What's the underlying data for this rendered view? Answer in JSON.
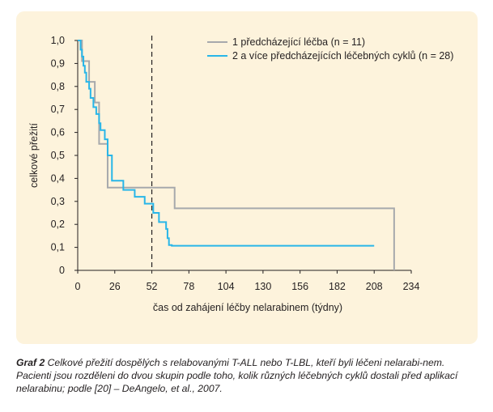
{
  "chart_data": {
    "type": "line",
    "subtype": "kaplan-meier step",
    "xlabel": "čas od zahájení léčby nelarabinem (týdny)",
    "ylabel": "celkové přežití",
    "xlim": [
      0,
      234
    ],
    "ylim": [
      0,
      1.0
    ],
    "x_ticks": [
      "0",
      "26",
      "52",
      "78",
      "104",
      "130",
      "156",
      "182",
      "208",
      "234"
    ],
    "y_ticks": [
      "0",
      "0,1",
      "0,2",
      "0,3",
      "0,4",
      "0,5",
      "0,6",
      "0,7",
      "0,8",
      "0,9",
      "1,0"
    ],
    "reference_line": {
      "x": 52,
      "style": "dashed"
    },
    "legend_position": "top-right",
    "series": [
      {
        "name": "1 předcházející léčba (n = 11)",
        "color": "#a7a9ac",
        "x": [
          0,
          3,
          8,
          12,
          15,
          21,
          68,
          222,
          222
        ],
        "y": [
          1.0,
          0.91,
          0.82,
          0.73,
          0.55,
          0.36,
          0.27,
          0.27,
          0.0
        ]
      },
      {
        "name": "2 a více předcházejících léčebných cyklů (n = 28)",
        "color": "#29b6e8",
        "x": [
          0,
          2,
          3,
          4,
          5,
          6,
          8,
          9,
          11,
          13,
          15,
          16,
          19,
          21,
          24,
          32,
          40,
          47,
          53,
          57,
          62,
          63,
          64,
          65,
          66,
          208,
          208
        ],
        "y": [
          1.0,
          0.96,
          0.93,
          0.89,
          0.86,
          0.82,
          0.79,
          0.75,
          0.71,
          0.68,
          0.64,
          0.61,
          0.57,
          0.5,
          0.39,
          0.35,
          0.32,
          0.29,
          0.25,
          0.21,
          0.18,
          0.14,
          0.11,
          0.11,
          0.107,
          0.107,
          0.107
        ]
      }
    ]
  },
  "caption": {
    "label": "Graf 2",
    "text": " Celkové přežití dospělých s relabovanými T-ALL nebo T-LBL, kteří byli léčeni nelarabi-nem. Pacienti jsou rozděleni do dvou skupin podle toho, kolik různých léčebných cyklů dostali před aplikací nelarabinu; podle [20] – DeAngelo, et al., 2007."
  }
}
